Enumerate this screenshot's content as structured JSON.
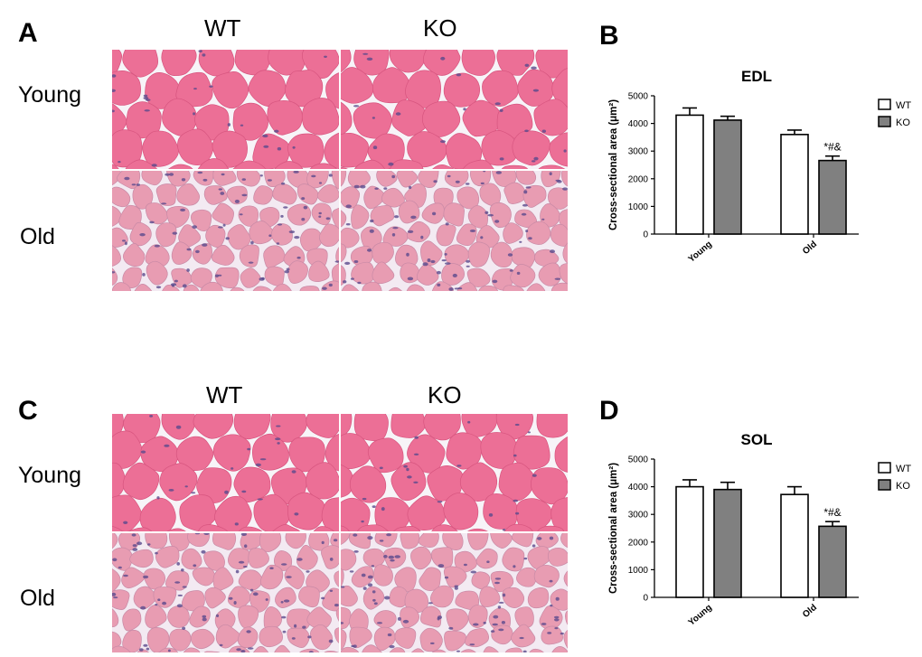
{
  "panels": {
    "A": {
      "letter": "A",
      "col_labels": [
        "WT",
        "KO"
      ],
      "row_labels": [
        "Young",
        "Old"
      ]
    },
    "C": {
      "letter": "C",
      "col_labels": [
        "WT",
        "KO"
      ],
      "row_labels": [
        "Young",
        "Old"
      ]
    },
    "B": {
      "letter": "B"
    },
    "D": {
      "letter": "D"
    }
  },
  "colors": {
    "wt_bar": "#ffffff",
    "ko_bar": "#808080",
    "young_tissue": "#ec6f96",
    "old_tissue": "#e89cb2",
    "background_gap": "#f7f4f8",
    "nuclei": "#5a4a8c"
  },
  "chart_data": [
    {
      "type": "bar",
      "title": "EDL",
      "ylabel": "Cross-sectional area (μm²)",
      "xlabel": "",
      "categories": [
        "Young",
        "Old"
      ],
      "ylim": [
        0,
        5000
      ],
      "yticks": [
        0,
        1000,
        2000,
        3000,
        4000,
        5000
      ],
      "legend": "top-right",
      "series": [
        {
          "name": "WT",
          "values": [
            4300,
            3600
          ],
          "errors": [
            260,
            160
          ]
        },
        {
          "name": "KO",
          "values": [
            4120,
            2660
          ],
          "errors": [
            140,
            160
          ]
        }
      ],
      "annotations": [
        {
          "category": "Old",
          "series": "KO",
          "text": "*#&"
        }
      ]
    },
    {
      "type": "bar",
      "title": "SOL",
      "ylabel": "Cross-sectional area (μm²)",
      "xlabel": "",
      "categories": [
        "Young",
        "Old"
      ],
      "ylim": [
        0,
        5000
      ],
      "yticks": [
        0,
        1000,
        2000,
        3000,
        4000,
        5000
      ],
      "legend": "top-right",
      "series": [
        {
          "name": "WT",
          "values": [
            4000,
            3720
          ],
          "errors": [
            250,
            280
          ]
        },
        {
          "name": "KO",
          "values": [
            3900,
            2570
          ],
          "errors": [
            260,
            170
          ]
        }
      ],
      "annotations": [
        {
          "category": "Old",
          "series": "KO",
          "text": "*#&"
        }
      ]
    }
  ]
}
